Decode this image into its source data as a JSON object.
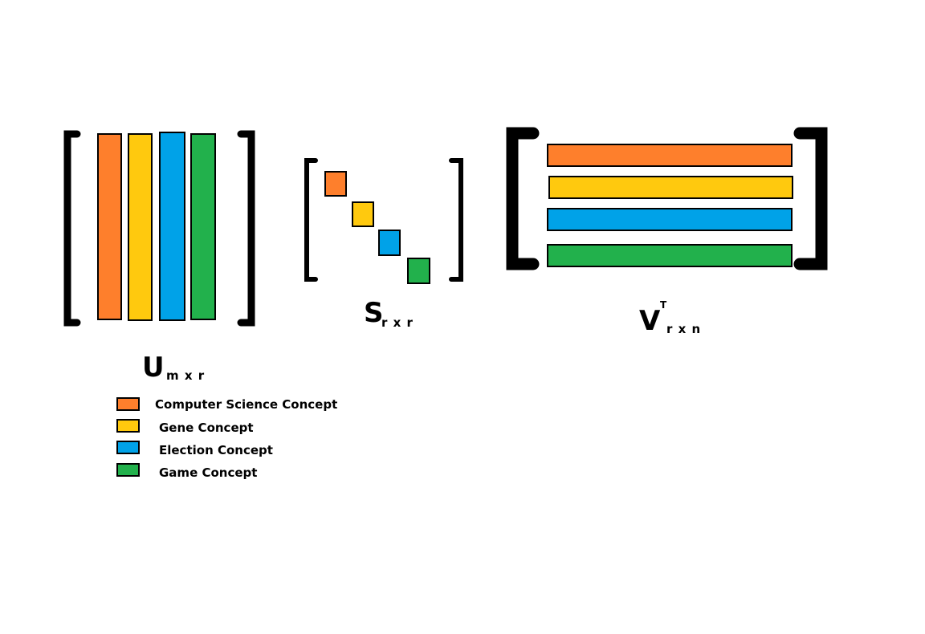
{
  "colors": {
    "computer_science": "#FE7F2C",
    "gene": "#FFC90E",
    "election": "#00A2E8",
    "game": "#22B14C",
    "outline": "#000000",
    "background": "#FFFFFF"
  },
  "matrices": {
    "u": {
      "letter": "U",
      "subscript": "m x r"
    },
    "s": {
      "letter": "S",
      "subscript": "r x r"
    },
    "vt": {
      "letter": "V",
      "superscript": "T",
      "subscript": "r x n"
    }
  },
  "legend": {
    "items": [
      {
        "label": "Computer Science Concept",
        "color": "#FE7F2C"
      },
      {
        "label": "Gene Concept",
        "color": "#FFC90E"
      },
      {
        "label": "Election Concept",
        "color": "#00A2E8"
      },
      {
        "label": "Game Concept",
        "color": "#22B14C"
      }
    ]
  }
}
